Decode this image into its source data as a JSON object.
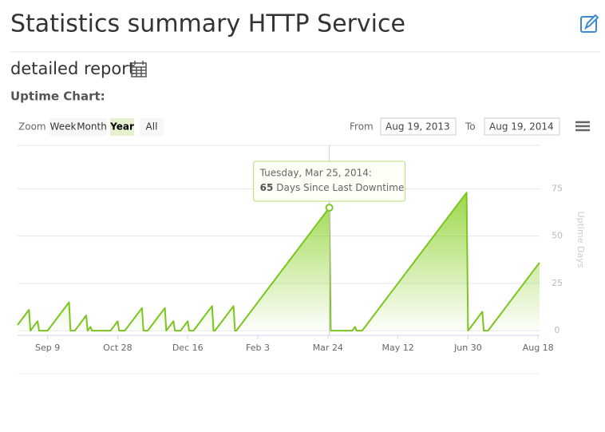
{
  "header": {
    "title": "Statistics summary HTTP Service",
    "subtitle": "detailed report",
    "section": "Uptime Chart:"
  },
  "zoom": {
    "label": "Zoom",
    "buttons": [
      "Week",
      "Month",
      "Year",
      "All"
    ],
    "selected": "Year"
  },
  "range": {
    "from_label": "From",
    "from": "Aug 19, 2013",
    "to_label": "To",
    "to": "Aug 19, 2014"
  },
  "chart_data": {
    "type": "area",
    "y_axis_title": "Uptime Days",
    "x": [
      "2013-08-19",
      "2013-08-27",
      "2013-08-28",
      "2013-09-02",
      "2013-09-03",
      "2013-09-09",
      "2013-09-24",
      "2013-09-25",
      "2013-09-28",
      "2013-10-06",
      "2013-10-07",
      "2013-10-09",
      "2013-10-10",
      "2013-10-23",
      "2013-10-28",
      "2013-10-29",
      "2013-11-02",
      "2013-11-14",
      "2013-11-15",
      "2013-11-18",
      "2013-11-30",
      "2013-12-01",
      "2013-12-06",
      "2013-12-07",
      "2013-12-11",
      "2013-12-16",
      "2013-12-17",
      "2013-12-20",
      "2014-01-02",
      "2014-01-03",
      "2014-01-04",
      "2014-01-17",
      "2014-01-18",
      "2014-01-19",
      "2014-03-25",
      "2014-03-26",
      "2014-04-10",
      "2014-04-12",
      "2014-04-13",
      "2014-04-17",
      "2014-06-29",
      "2014-06-30",
      "2014-07-10",
      "2014-07-11",
      "2014-07-14",
      "2014-08-19"
    ],
    "series": [
      {
        "name": "Days Since Last Downtime",
        "color": "#7cc521",
        "values": [
          3,
          11,
          0,
          5,
          0,
          0,
          15,
          0,
          0,
          8,
          0,
          2,
          0,
          0,
          5,
          0,
          0,
          12,
          0,
          0,
          12,
          0,
          5,
          0,
          0,
          5,
          0,
          0,
          13,
          0,
          0,
          13,
          0,
          0,
          65,
          0,
          0,
          2,
          0,
          0,
          73,
          0,
          10,
          0,
          0,
          36
        ]
      }
    ],
    "xlim": [
      "2013-08-19",
      "2014-08-19"
    ],
    "xticks": [
      {
        "value": "2013-09-09",
        "label": "Sep 9"
      },
      {
        "value": "2013-10-28",
        "label": "Oct 28"
      },
      {
        "value": "2013-12-16",
        "label": "Dec 16"
      },
      {
        "value": "2014-02-03",
        "label": "Feb 3"
      },
      {
        "value": "2014-03-24",
        "label": "Mar 24"
      },
      {
        "value": "2014-05-12",
        "label": "May 12"
      },
      {
        "value": "2014-06-30",
        "label": "Jun 30"
      },
      {
        "value": "2014-08-18",
        "label": "Aug 18"
      }
    ],
    "ylim": [
      -2.5,
      98
    ],
    "yticks": [
      0,
      25,
      50,
      75
    ],
    "grid": true,
    "tooltip": {
      "title": "Tuesday, Mar 25, 2014:",
      "value": 65,
      "text": "Days Since Last Downtime"
    }
  }
}
